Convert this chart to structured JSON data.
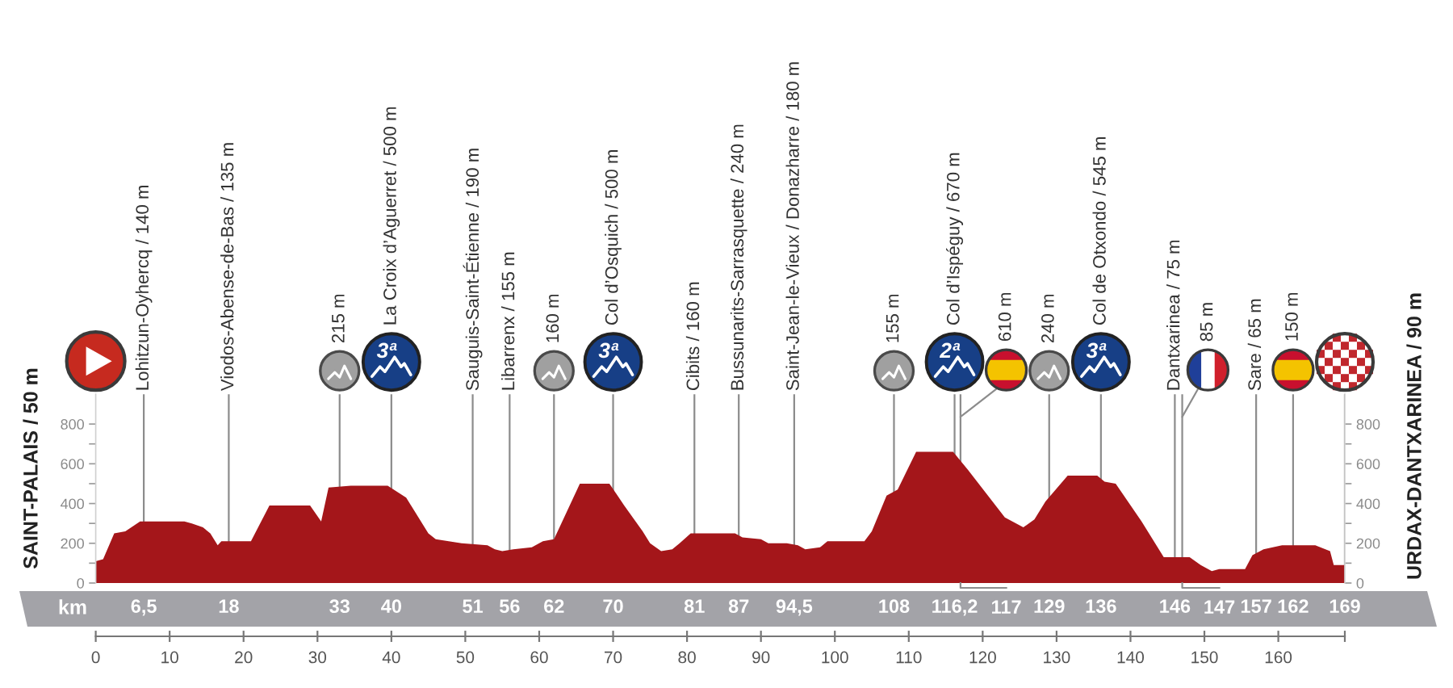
{
  "chart_data": {
    "type": "area",
    "color": "#a4161a",
    "x": [
      0,
      1,
      2.5,
      4,
      6,
      12,
      13,
      14.5,
      15.5,
      16.5,
      17,
      21,
      23.5,
      29,
      30.5,
      31.5,
      34.5,
      39.5,
      42,
      45,
      46,
      49.5,
      53,
      54,
      55,
      56.5,
      59,
      60.5,
      62,
      65.5,
      69.5,
      71.5,
      74,
      75,
      76.5,
      78,
      79,
      80.5,
      86.5,
      87.5,
      90,
      91,
      93.5,
      95,
      96,
      98,
      99,
      104,
      105,
      107,
      108.5,
      111,
      116,
      118,
      123,
      125.5,
      127,
      128.5,
      131.5,
      135.5,
      136.5,
      138,
      141.5,
      144.5,
      148,
      149.5,
      151,
      152,
      155.5,
      156.5,
      158,
      160.5,
      165,
      167,
      167.5,
      169
    ],
    "values": [
      110,
      120,
      250,
      260,
      310,
      310,
      300,
      280,
      250,
      190,
      210,
      210,
      390,
      390,
      310,
      480,
      490,
      490,
      430,
      250,
      220,
      200,
      190,
      170,
      160,
      170,
      180,
      210,
      220,
      500,
      500,
      390,
      260,
      200,
      160,
      170,
      200,
      250,
      250,
      230,
      220,
      200,
      200,
      190,
      170,
      180,
      210,
      210,
      260,
      440,
      470,
      660,
      660,
      570,
      330,
      280,
      320,
      410,
      540,
      540,
      510,
      500,
      310,
      130,
      130,
      90,
      60,
      70,
      70,
      140,
      170,
      190,
      190,
      160,
      90,
      90
    ],
    "xlim": [
      0,
      169
    ],
    "xticks": [
      0,
      10,
      20,
      30,
      40,
      50,
      60,
      70,
      80,
      90,
      100,
      110,
      120,
      130,
      140,
      150,
      160,
      {
        "value": 169,
        "label": null
      }
    ],
    "ylim": [
      0,
      950
    ],
    "yticks": [
      0,
      {
        "value": 100,
        "label": null
      },
      200,
      {
        "value": 300,
        "label": null
      },
      400,
      {
        "value": 500,
        "label": null
      },
      600,
      {
        "value": 700,
        "label": null
      },
      800
    ],
    "y2lim": [
      0,
      950
    ],
    "y2ticks": [
      0,
      {
        "value": 100,
        "label": null
      },
      200,
      {
        "value": 300,
        "label": null
      },
      400,
      {
        "value": 500,
        "label": null
      },
      600,
      {
        "value": 700,
        "label": null
      },
      800
    ],
    "x2lim": [
      0,
      169
    ],
    "x2ticks": [
      {
        "value": 6.5,
        "label": "6,5"
      },
      18,
      33,
      40,
      51,
      56,
      62,
      70,
      81,
      87,
      {
        "value": 94.5,
        "label": "94,5"
      },
      108,
      {
        "value": 116.2,
        "label": "116,2"
      },
      {
        "value": 117,
        "label": null
      },
      129,
      136,
      146,
      {
        "value": 147,
        "label": null
      },
      157,
      162,
      169
    ],
    "x2label": "km",
    "grid": "x",
    "ylabel": "SAINT-PALAIS / 50 m",
    "y2label": "URDAX-DANTXARINEA / 90 m",
    "annotations": [
      "Lohitzun-Oyhercq / 140 m",
      "Viodos-Abense-de-Bas / 135 m",
      "215 m",
      "3ª",
      "La Croix d’Aguerret / 500 m",
      "Sauguis-Saint-Étienne / 190 m",
      "Libarrenx / 155 m",
      "160 m",
      "3ª",
      "Col d’Osquich / 500 m",
      "Cibits / 160 m",
      "Bussunarits-Sarrasquette / 240 m",
      "Saint-Jean-le-Vieux / Donazharre / 180 m",
      "155 m",
      "2ª",
      "Col d’Ispéguy / 670 m",
      "610 m",
      "117",
      "240 m",
      "3ª",
      "Col de Otxondo / 545 m",
      "Dantxarinea / 75 m",
      "85 m",
      "147",
      "Sare / 65 m",
      "150 m"
    ]
  }
}
